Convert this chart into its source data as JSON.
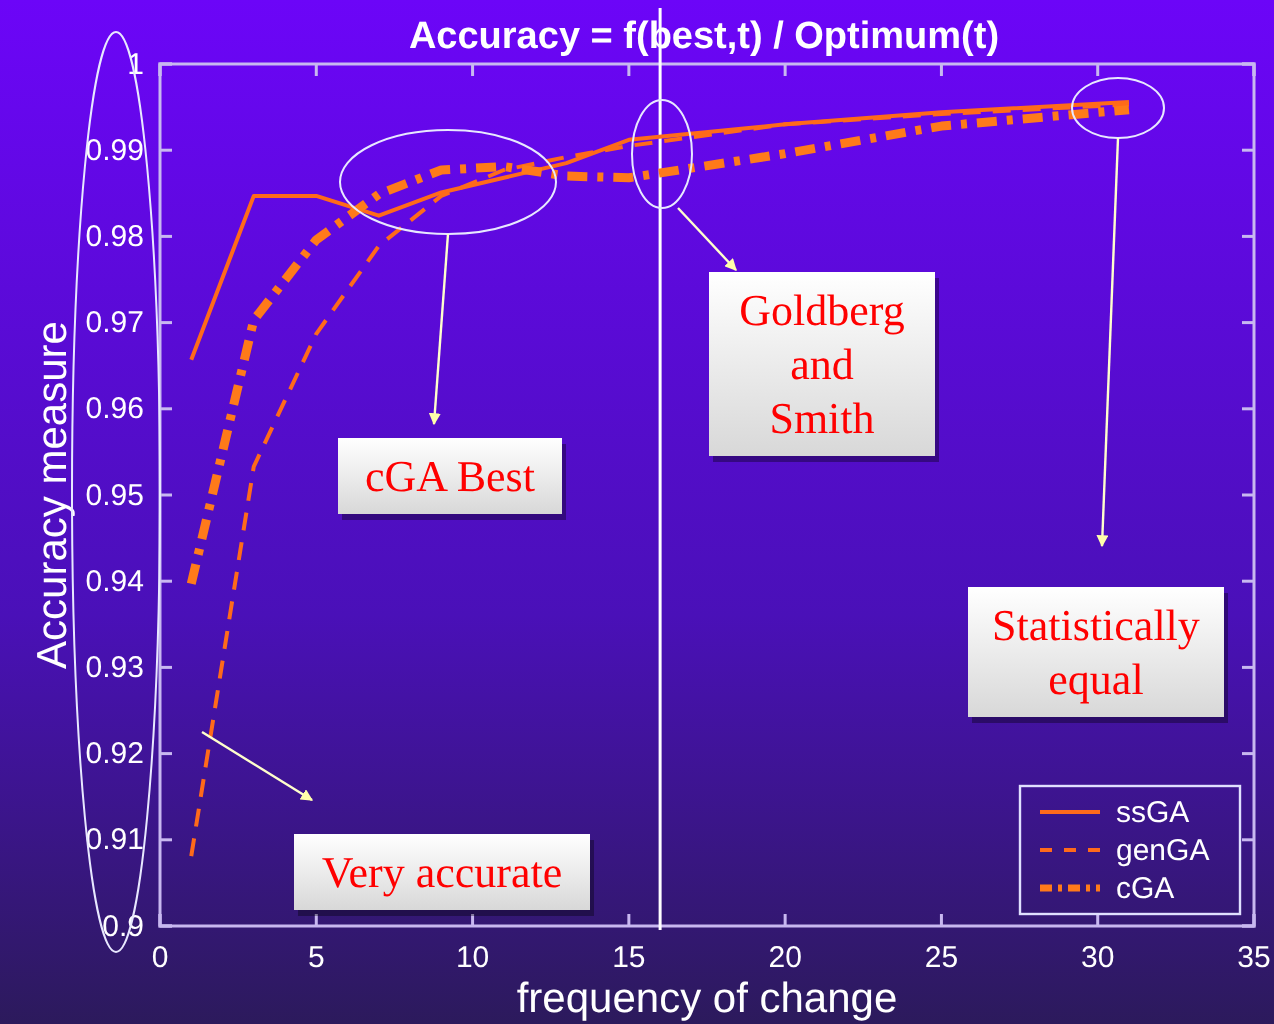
{
  "chart_data": {
    "type": "line",
    "title": "Accuracy = f(best,t) / Optimum(t)",
    "xlabel": "frequency of change",
    "ylabel": "Accuracy measure",
    "x": [
      1,
      3,
      5,
      7,
      9,
      11,
      13,
      15,
      20,
      25,
      31
    ],
    "series": [
      {
        "name": "ssGA",
        "color": "#ff6a1a",
        "line_style": "solid",
        "values": [
          0.9657,
          0.9847,
          0.9847,
          0.9824,
          0.9851,
          0.9868,
          0.9885,
          0.9912,
          0.993,
          0.9944,
          0.9956
        ]
      },
      {
        "name": "genGA",
        "color": "#ff6a1a",
        "line_style": "dashed",
        "values": [
          0.9081,
          0.9533,
          0.9687,
          0.9789,
          0.9847,
          0.9877,
          0.9892,
          0.9905,
          0.993,
          0.9942,
          0.9953
        ]
      },
      {
        "name": "cGA",
        "color": "#ff7a1a",
        "line_style": "dashdot",
        "values": [
          0.9397,
          0.9703,
          0.9796,
          0.9849,
          0.9877,
          0.9881,
          0.987,
          0.9868,
          0.9896,
          0.9928,
          0.9947
        ]
      }
    ],
    "xlim": [
      0,
      35
    ],
    "xticks": [
      0,
      5,
      10,
      15,
      20,
      25,
      30,
      35
    ],
    "ylim": [
      0.9,
      1
    ],
    "yticks": [
      0.9,
      0.91,
      0.92,
      0.93,
      0.94,
      0.95,
      0.96,
      0.97,
      0.98,
      0.99,
      1
    ],
    "ref_lines": [
      {
        "axis": "x",
        "value": 16,
        "label": null,
        "color": "#ffffff"
      }
    ],
    "annotations": [
      "cGA Best",
      "Goldberg and Smith",
      "Statistically equal",
      "Very accurate"
    ],
    "legend": "bottom right",
    "grid": false
  }
}
